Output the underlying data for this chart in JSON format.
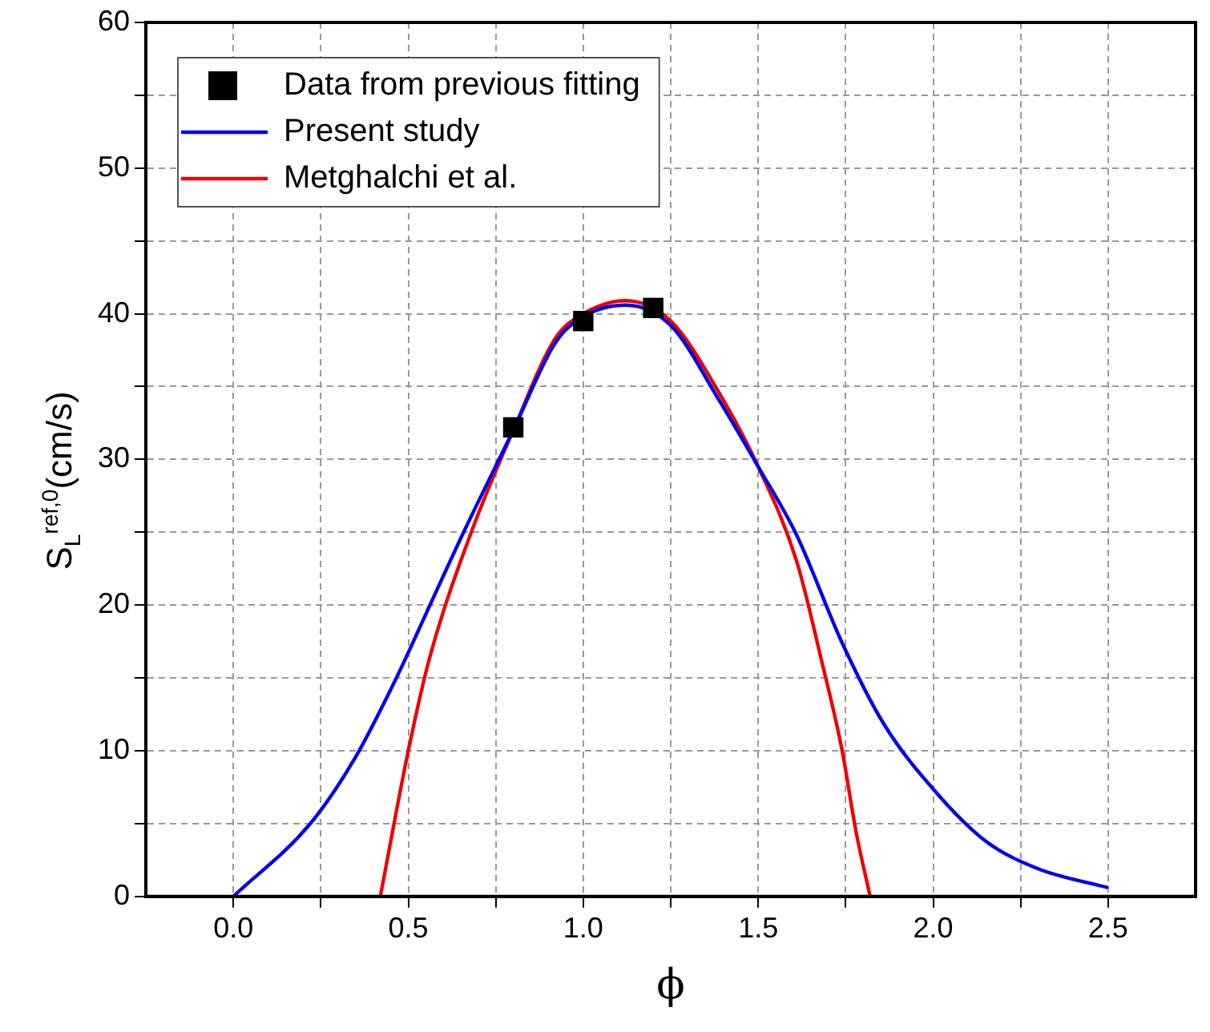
{
  "chart_data": {
    "type": "line",
    "xlabel": "ϕ",
    "ylabel": "S$_{L}$$^{ref,0}$(cm/s)",
    "xlim": [
      -0.25,
      2.75
    ],
    "ylim": [
      0,
      60
    ],
    "xticks": [
      {
        "value": 0,
        "label": "0.0"
      },
      {
        "value": 0.25,
        "label": null
      },
      {
        "value": 0.5,
        "label": "0.5"
      },
      {
        "value": 0.75,
        "label": null
      },
      {
        "value": 1,
        "label": "1.0"
      },
      {
        "value": 1.25,
        "label": null
      },
      {
        "value": 1.5,
        "label": "1.5"
      },
      {
        "value": 1.75,
        "label": null
      },
      {
        "value": 2,
        "label": "2.0"
      },
      {
        "value": 2.25,
        "label": null
      },
      {
        "value": 2.5,
        "label": "2.5"
      }
    ],
    "yticks": [
      0,
      {
        "value": 5,
        "label": null
      },
      10,
      {
        "value": 15,
        "label": null
      },
      20,
      {
        "value": 25,
        "label": null
      },
      30,
      {
        "value": 35,
        "label": null
      },
      40,
      {
        "value": 45,
        "label": null
      },
      50,
      {
        "value": 55,
        "label": null
      },
      60
    ],
    "grid": true,
    "legend": "top left",
    "line_style": "solid",
    "series": [
      {
        "name": "Data from previous fitting",
        "type": "scatter",
        "marker": "square",
        "color": "#000000",
        "x": [
          0.8,
          1.0,
          1.2
        ],
        "values": [
          32.2,
          39.5,
          40.4
        ]
      },
      {
        "name": "Present study",
        "marker": "none",
        "color": "#0000ee",
        "x": [
          0,
          0.22,
          0.35,
          0.47,
          0.56,
          0.66,
          0.8,
          0.92,
          1.0,
          1.12,
          1.25,
          1.39,
          1.5,
          1.61,
          1.74,
          1.86,
          2.01,
          2.15,
          2.3,
          2.5
        ],
        "values": [
          0,
          5,
          9.6,
          15.2,
          19.9,
          25.1,
          32,
          38,
          39.8,
          40.6,
          39.2,
          34,
          29.5,
          24.8,
          17.4,
          11.8,
          7.1,
          3.8,
          1.9,
          0.6
        ]
      },
      {
        "name": "Metghalchi et al.",
        "marker": "none",
        "color": "#ee0000",
        "x": [
          0.42,
          0.5,
          0.56,
          0.68,
          0.8,
          0.92,
          1.0,
          1.12,
          1.25,
          1.39,
          1.5,
          1.61,
          1.68,
          1.74,
          1.78,
          1.82
        ],
        "values": [
          0,
          10,
          16.3,
          25,
          32,
          38.3,
          40,
          40.9,
          39.5,
          34.5,
          29.5,
          23,
          16.3,
          10,
          4.4,
          0
        ]
      }
    ]
  }
}
